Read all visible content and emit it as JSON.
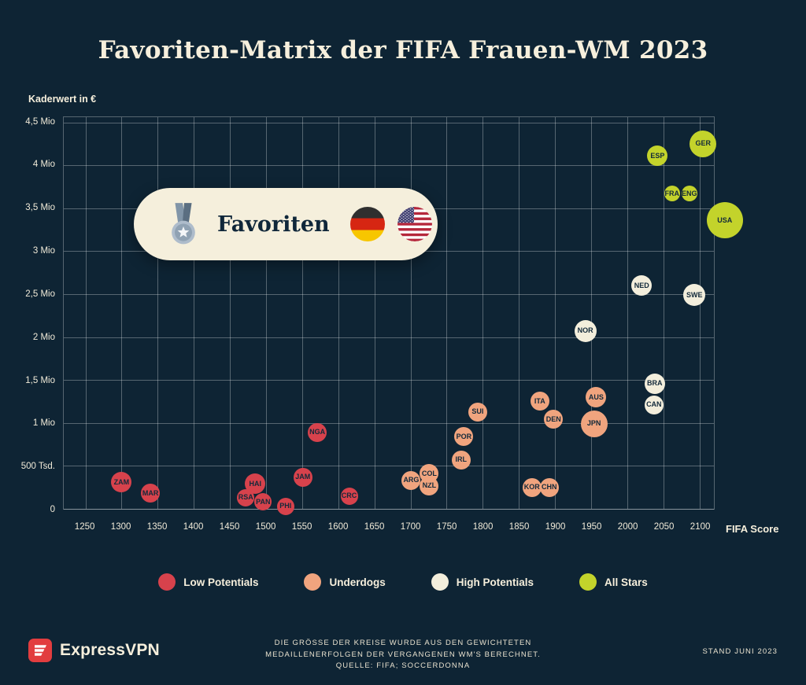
{
  "chart_data": {
    "type": "scatter",
    "title": "Favoriten-Matrix der FIFA Frauen-WM 2023",
    "xlabel": "FIFA Score",
    "ylabel": "Kaderwert in €",
    "xlim": [
      1220,
      2120
    ],
    "ylim": [
      0,
      4560000
    ],
    "grid": true,
    "x_ticks": [
      1250,
      1300,
      1350,
      1400,
      1450,
      1500,
      1550,
      1600,
      1650,
      1700,
      1750,
      1800,
      1850,
      1900,
      1950,
      2000,
      2050,
      2100
    ],
    "y_ticks": [
      {
        "value": 0,
        "label": "0"
      },
      {
        "value": 500000,
        "label": "500 Tsd."
      },
      {
        "value": 1000000,
        "label": "1 Mio"
      },
      {
        "value": 1500000,
        "label": "1,5 Mio"
      },
      {
        "value": 2000000,
        "label": "2 Mio"
      },
      {
        "value": 2500000,
        "label": "2,5 Mio"
      },
      {
        "value": 3000000,
        "label": "3 Mio"
      },
      {
        "value": 3500000,
        "label": "3,5 Mio"
      },
      {
        "value": 4000000,
        "label": "4 Mio"
      },
      {
        "value": 4500000,
        "label": "4,5 Mio"
      }
    ],
    "series": [
      {
        "name": "Low Potentials",
        "color": "#d7424c",
        "points": [
          {
            "label": "ZAM",
            "x": 1300,
            "y": 310000,
            "r": 13
          },
          {
            "label": "MAR",
            "x": 1340,
            "y": 180000,
            "r": 12
          },
          {
            "label": "RSA",
            "x": 1472,
            "y": 130000,
            "r": 11
          },
          {
            "label": "HAI",
            "x": 1485,
            "y": 290000,
            "r": 13
          },
          {
            "label": "PAN",
            "x": 1496,
            "y": 80000,
            "r": 11
          },
          {
            "label": "PHI",
            "x": 1527,
            "y": 30000,
            "r": 11
          },
          {
            "label": "JAM",
            "x": 1551,
            "y": 370000,
            "r": 12
          },
          {
            "label": "NGA",
            "x": 1571,
            "y": 890000,
            "r": 12
          },
          {
            "label": "CRC",
            "x": 1615,
            "y": 150000,
            "r": 11
          }
        ]
      },
      {
        "name": "Underdogs",
        "color": "#f0a47e",
        "points": [
          {
            "label": "ARG",
            "x": 1701,
            "y": 330000,
            "r": 12
          },
          {
            "label": "NZL",
            "x": 1726,
            "y": 270000,
            "r": 12
          },
          {
            "label": "COL",
            "x": 1726,
            "y": 410000,
            "r": 12
          },
          {
            "label": "IRL",
            "x": 1770,
            "y": 570000,
            "r": 12
          },
          {
            "label": "POR",
            "x": 1774,
            "y": 840000,
            "r": 12
          },
          {
            "label": "SUI",
            "x": 1793,
            "y": 1130000,
            "r": 12
          },
          {
            "label": "KOR",
            "x": 1868,
            "y": 250000,
            "r": 12
          },
          {
            "label": "CHN",
            "x": 1892,
            "y": 250000,
            "r": 12
          },
          {
            "label": "ITA",
            "x": 1879,
            "y": 1250000,
            "r": 12
          },
          {
            "label": "DEN",
            "x": 1898,
            "y": 1040000,
            "r": 12
          },
          {
            "label": "JPN",
            "x": 1954,
            "y": 990000,
            "r": 17
          },
          {
            "label": "AUS",
            "x": 1957,
            "y": 1300000,
            "r": 13
          }
        ]
      },
      {
        "name": "High Potentials",
        "color": "#f3eedc",
        "points": [
          {
            "label": "NOR",
            "x": 1942,
            "y": 2070000,
            "r": 14
          },
          {
            "label": "NED",
            "x": 2020,
            "y": 2600000,
            "r": 13
          },
          {
            "label": "CAN",
            "x": 2037,
            "y": 1210000,
            "r": 12
          },
          {
            "label": "BRA",
            "x": 2038,
            "y": 1460000,
            "r": 13
          },
          {
            "label": "SWE",
            "x": 2093,
            "y": 2490000,
            "r": 14
          }
        ]
      },
      {
        "name": "All Stars",
        "color": "#c3d32b",
        "points": [
          {
            "label": "ESP",
            "x": 2042,
            "y": 4110000,
            "r": 13
          },
          {
            "label": "FRA",
            "x": 2062,
            "y": 3670000,
            "r": 10
          },
          {
            "label": "ENG",
            "x": 2086,
            "y": 3670000,
            "r": 10
          },
          {
            "label": "GER",
            "x": 2105,
            "y": 4250000,
            "r": 17
          },
          {
            "label": "USA",
            "x": 2135,
            "y": 3360000,
            "r": 23
          }
        ]
      }
    ]
  },
  "badge": {
    "label": "Favoriten",
    "medal_icon": "medal-icon",
    "flags": [
      "germany-flag-icon",
      "usa-flag-icon"
    ]
  },
  "legend": [
    {
      "label": "Low Potentials",
      "color": "#d7424c"
    },
    {
      "label": "Underdogs",
      "color": "#f0a47e"
    },
    {
      "label": "High Potentials",
      "color": "#f3eedc"
    },
    {
      "label": "All Stars",
      "color": "#c3d32b"
    }
  ],
  "footer": {
    "brand": "ExpressVPN",
    "note": "DIE GRÖSSE DER KREISE WURDE AUS DEN GEWICHTETEN\nMEDAILLENERFOLGEN DER VERGANGENEN WM'S BERECHNET.\nQUELLE: FIFA; SOCCERDONNA",
    "stand": "STAND JUNI 2023"
  },
  "colors": {
    "background": "#0e2434",
    "text_cream": "#f6efdc",
    "grid": "rgba(255,255,255,0.30)"
  }
}
